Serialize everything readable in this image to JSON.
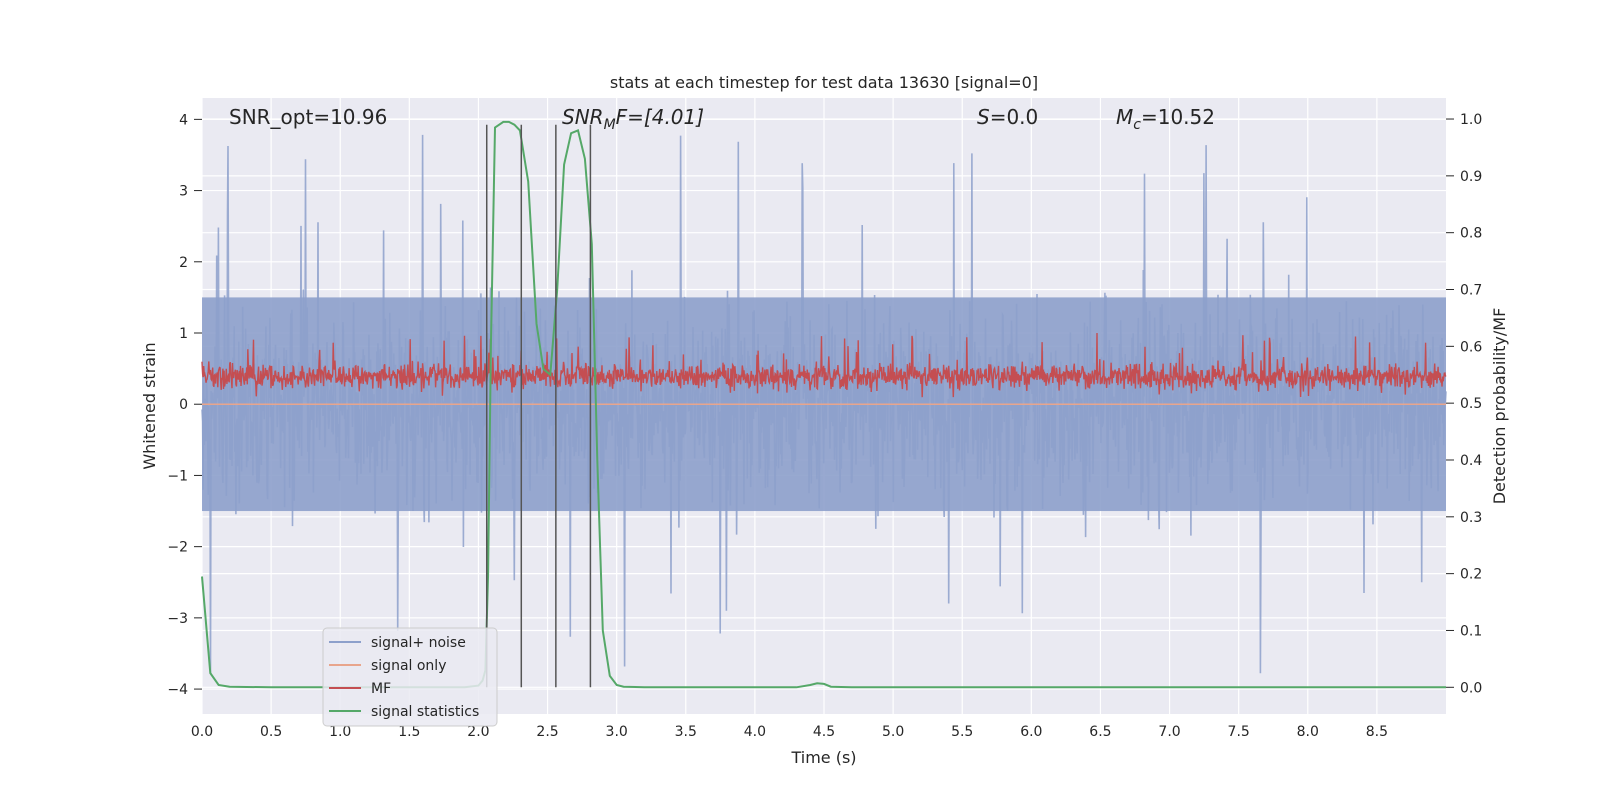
{
  "chart_data": {
    "type": "line",
    "title": "stats at each timestep for test data 13630 [signal=0]",
    "xlabel": "Time (s)",
    "ylabel": "Whitened strain",
    "ylabel_right": "Detection probability/MF",
    "xlim": [
      0,
      9.0
    ],
    "ylim": [
      -4.35,
      4.3
    ],
    "ylim_right": [
      -0.047,
      1.037
    ],
    "xticks": [
      "0.0",
      "0.5",
      "1.0",
      "1.5",
      "2.0",
      "2.5",
      "3.0",
      "3.5",
      "4.0",
      "4.5",
      "5.0",
      "5.5",
      "6.0",
      "6.5",
      "7.0",
      "7.5",
      "8.0",
      "8.5"
    ],
    "xtick_values": [
      0,
      0.5,
      1,
      1.5,
      2,
      2.5,
      3,
      3.5,
      4,
      4.5,
      5,
      5.5,
      6,
      6.5,
      7,
      7.5,
      8,
      8.5
    ],
    "yticks": [
      "−4",
      "−3",
      "−2",
      "−1",
      "0",
      "1",
      "2",
      "3",
      "4"
    ],
    "ytick_values": [
      -4,
      -3,
      -2,
      -1,
      0,
      1,
      2,
      3,
      4
    ],
    "yticks_right": [
      "0.0",
      "0.1",
      "0.2",
      "0.3",
      "0.4",
      "0.5",
      "0.6",
      "0.7",
      "0.8",
      "0.9",
      "1.0"
    ],
    "ytick_values_right": [
      0,
      0.1,
      0.2,
      0.3,
      0.4,
      0.5,
      0.6,
      0.7,
      0.8,
      0.9,
      1.0
    ],
    "grid": true,
    "legend_position": "lower-left",
    "annotations": {
      "snr_opt": "SNR_opt=10.96",
      "snr_mf_main": "SNR",
      "snr_mf_sub": "M",
      "snr_mf_tail": "F=[4.01]",
      "s_main": "S",
      "s_tail": "=0.0",
      "mc_main": "M",
      "mc_sub": "c",
      "mc_tail": "=10.52"
    },
    "vertical_lines_x": [
      2.06,
      2.31,
      2.56,
      2.81
    ],
    "series": [
      {
        "name": "signal+ noise",
        "color": "#8da0cb",
        "axis": "left",
        "kind": "noise",
        "description_values": {
          "band_low": -1.5,
          "band_high": 1.5,
          "spikes_max": 3.9,
          "spikes_min": -4.0
        }
      },
      {
        "name": "signal only",
        "color": "#e8a58c",
        "axis": "left",
        "kind": "flat",
        "y": 0
      },
      {
        "name": "MF",
        "color": "#c44e52",
        "axis": "right",
        "kind": "noise",
        "description_values": {
          "band_low": 0.515,
          "band_high": 0.58,
          "spikes_max": 0.63
        }
      },
      {
        "name": "signal statistics",
        "color": "#55a868",
        "axis": "right",
        "kind": "line",
        "x": [
          0.0,
          0.06,
          0.12,
          0.2,
          0.5,
          1.0,
          1.5,
          1.9,
          2.0,
          2.03,
          2.05,
          2.07,
          2.09,
          2.12,
          2.18,
          2.22,
          2.26,
          2.3,
          2.36,
          2.42,
          2.47,
          2.52,
          2.57,
          2.62,
          2.67,
          2.72,
          2.77,
          2.82,
          2.86,
          2.9,
          2.95,
          3.0,
          3.05,
          3.2,
          3.5,
          4.0,
          4.3,
          4.4,
          4.45,
          4.5,
          4.55,
          4.7,
          5.0,
          6.0,
          7.0,
          8.0,
          9.0
        ],
        "y": [
          0.195,
          0.025,
          0.004,
          0.001,
          0.0,
          0.0,
          0.0,
          0.0,
          0.003,
          0.012,
          0.03,
          0.2,
          0.6,
          0.985,
          0.995,
          0.995,
          0.99,
          0.98,
          0.89,
          0.64,
          0.56,
          0.55,
          0.7,
          0.92,
          0.975,
          0.98,
          0.93,
          0.78,
          0.4,
          0.1,
          0.02,
          0.004,
          0.001,
          0.0,
          0.0,
          0.0,
          0.0,
          0.004,
          0.007,
          0.006,
          0.001,
          0.0,
          0.0,
          0.0,
          0.0,
          0.0,
          0.0
        ]
      }
    ]
  },
  "legend": {
    "items": [
      {
        "label": "signal+ noise",
        "color": "#8da0cb"
      },
      {
        "label": "signal only",
        "color": "#e8a58c"
      },
      {
        "label": "MF",
        "color": "#c44e52"
      },
      {
        "label": "signal statistics",
        "color": "#55a868"
      }
    ]
  }
}
